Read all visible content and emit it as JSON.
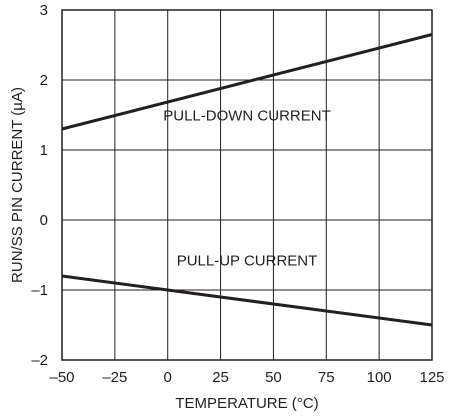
{
  "chart_data": {
    "type": "line",
    "title": "",
    "xlabel": "TEMPERATURE (°C)",
    "ylabel": "RUN/SS PIN CURRENT (µA)",
    "xlim": [
      -50,
      125
    ],
    "ylim": [
      -2,
      3
    ],
    "x_ticks": [
      -50,
      -25,
      0,
      25,
      50,
      75,
      100,
      125
    ],
    "y_ticks": [
      -2,
      -1,
      0,
      1,
      2,
      3
    ],
    "x_tick_labels": [
      "–50",
      "–25",
      "0",
      "25",
      "50",
      "75",
      "100",
      "125"
    ],
    "y_tick_labels": [
      "–2",
      "–1",
      "0",
      "1",
      "2",
      "3"
    ],
    "grid": true,
    "series": [
      {
        "name": "PULL-DOWN CURRENT",
        "x": [
          -50,
          125
        ],
        "y": [
          1.3,
          2.65
        ]
      },
      {
        "name": "PULL-UP CURRENT",
        "x": [
          -50,
          125
        ],
        "y": [
          -0.8,
          -1.5
        ]
      }
    ],
    "annotations": [
      {
        "text": "PULL-DOWN CURRENT",
        "x": 37.5,
        "y": 1.35
      },
      {
        "text": "PULL-UP CURRENT",
        "x": 37.5,
        "y": -0.72
      }
    ]
  }
}
